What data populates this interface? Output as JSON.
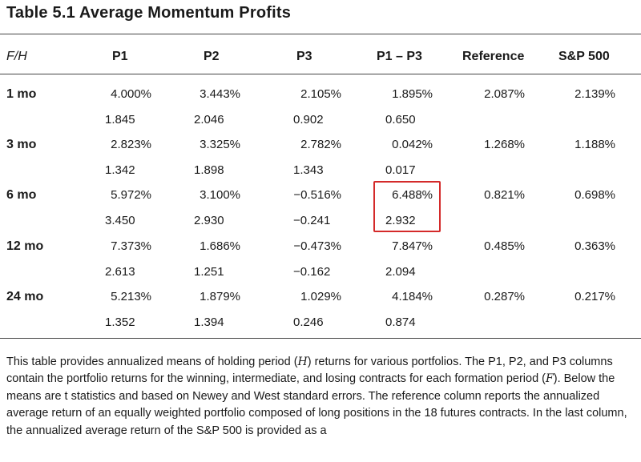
{
  "title": "Table 5.1  Average Momentum Profits",
  "headers": [
    "F/H",
    "P1",
    "P2",
    "P3",
    "P1 – P3",
    "Reference",
    "S&P 500"
  ],
  "rows": [
    {
      "label": "1 mo",
      "means": [
        "4.000%",
        "3.443%",
        "2.105%",
        "1.895%",
        "2.087%",
        "2.139%"
      ],
      "tstats": [
        "1.845",
        "2.046",
        "0.902",
        "0.650"
      ]
    },
    {
      "label": "3 mo",
      "means": [
        "2.823%",
        "3.325%",
        "2.782%",
        "0.042%",
        "1.268%",
        "1.188%"
      ],
      "tstats": [
        "1.342",
        "1.898",
        "1.343",
        "0.017"
      ]
    },
    {
      "label": "6 mo",
      "means": [
        "5.972%",
        "3.100%",
        "−0.516%",
        "6.488%",
        "0.821%",
        "0.698%"
      ],
      "tstats": [
        "3.450",
        "2.930",
        "−0.241",
        "2.932"
      ]
    },
    {
      "label": "12 mo",
      "means": [
        "7.373%",
        "1.686%",
        "−0.473%",
        "7.847%",
        "0.485%",
        "0.363%"
      ],
      "tstats": [
        "2.613",
        "1.251",
        "−0.162",
        "2.094"
      ]
    },
    {
      "label": "24 mo",
      "means": [
        "5.213%",
        "1.879%",
        "1.029%",
        "4.184%",
        "0.287%",
        "0.217%"
      ],
      "tstats": [
        "1.352",
        "1.394",
        "0.246",
        "0.874"
      ]
    }
  ],
  "note": {
    "p1": "This table provides annualized means of holding period (",
    "h": "H",
    "p2": ") returns for various portfolios. The P1, P2, and P3 columns contain the portfolio returns for the winning, intermediate, and losing contracts for each formation period (",
    "f": "F",
    "p3": "). Below the means are t statistics and based on Newey and West standard errors. The reference column reports the annualized average return of an equally weighted portfolio composed of long positions in the 18 futures contracts. In the last column, the annualized average return of the S&P 500 is provided as a"
  }
}
